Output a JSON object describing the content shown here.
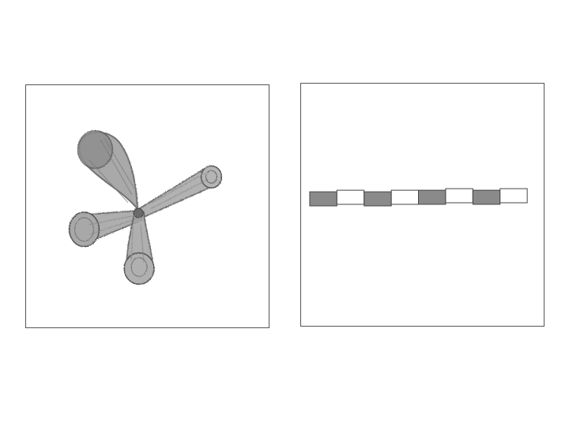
{
  "colors": {
    "page_background": "#ffffff",
    "frame_border": "#555555",
    "pencil_dark": "#5a5a5a",
    "pencil_mid": "#8c8c8c",
    "pencil_light": "#b5b5b5",
    "segment_shaded": "#8a8a8a",
    "segment_blank": "#ffffff"
  },
  "left_panel": {
    "drawing": "sketch-three-lobed-shape"
  },
  "right_panel": {
    "drawing": "sketch-segmented-bar",
    "segment_pattern": [
      "shaded",
      "blank",
      "shaded",
      "blank",
      "shaded",
      "blank",
      "shaded",
      "blank"
    ]
  }
}
